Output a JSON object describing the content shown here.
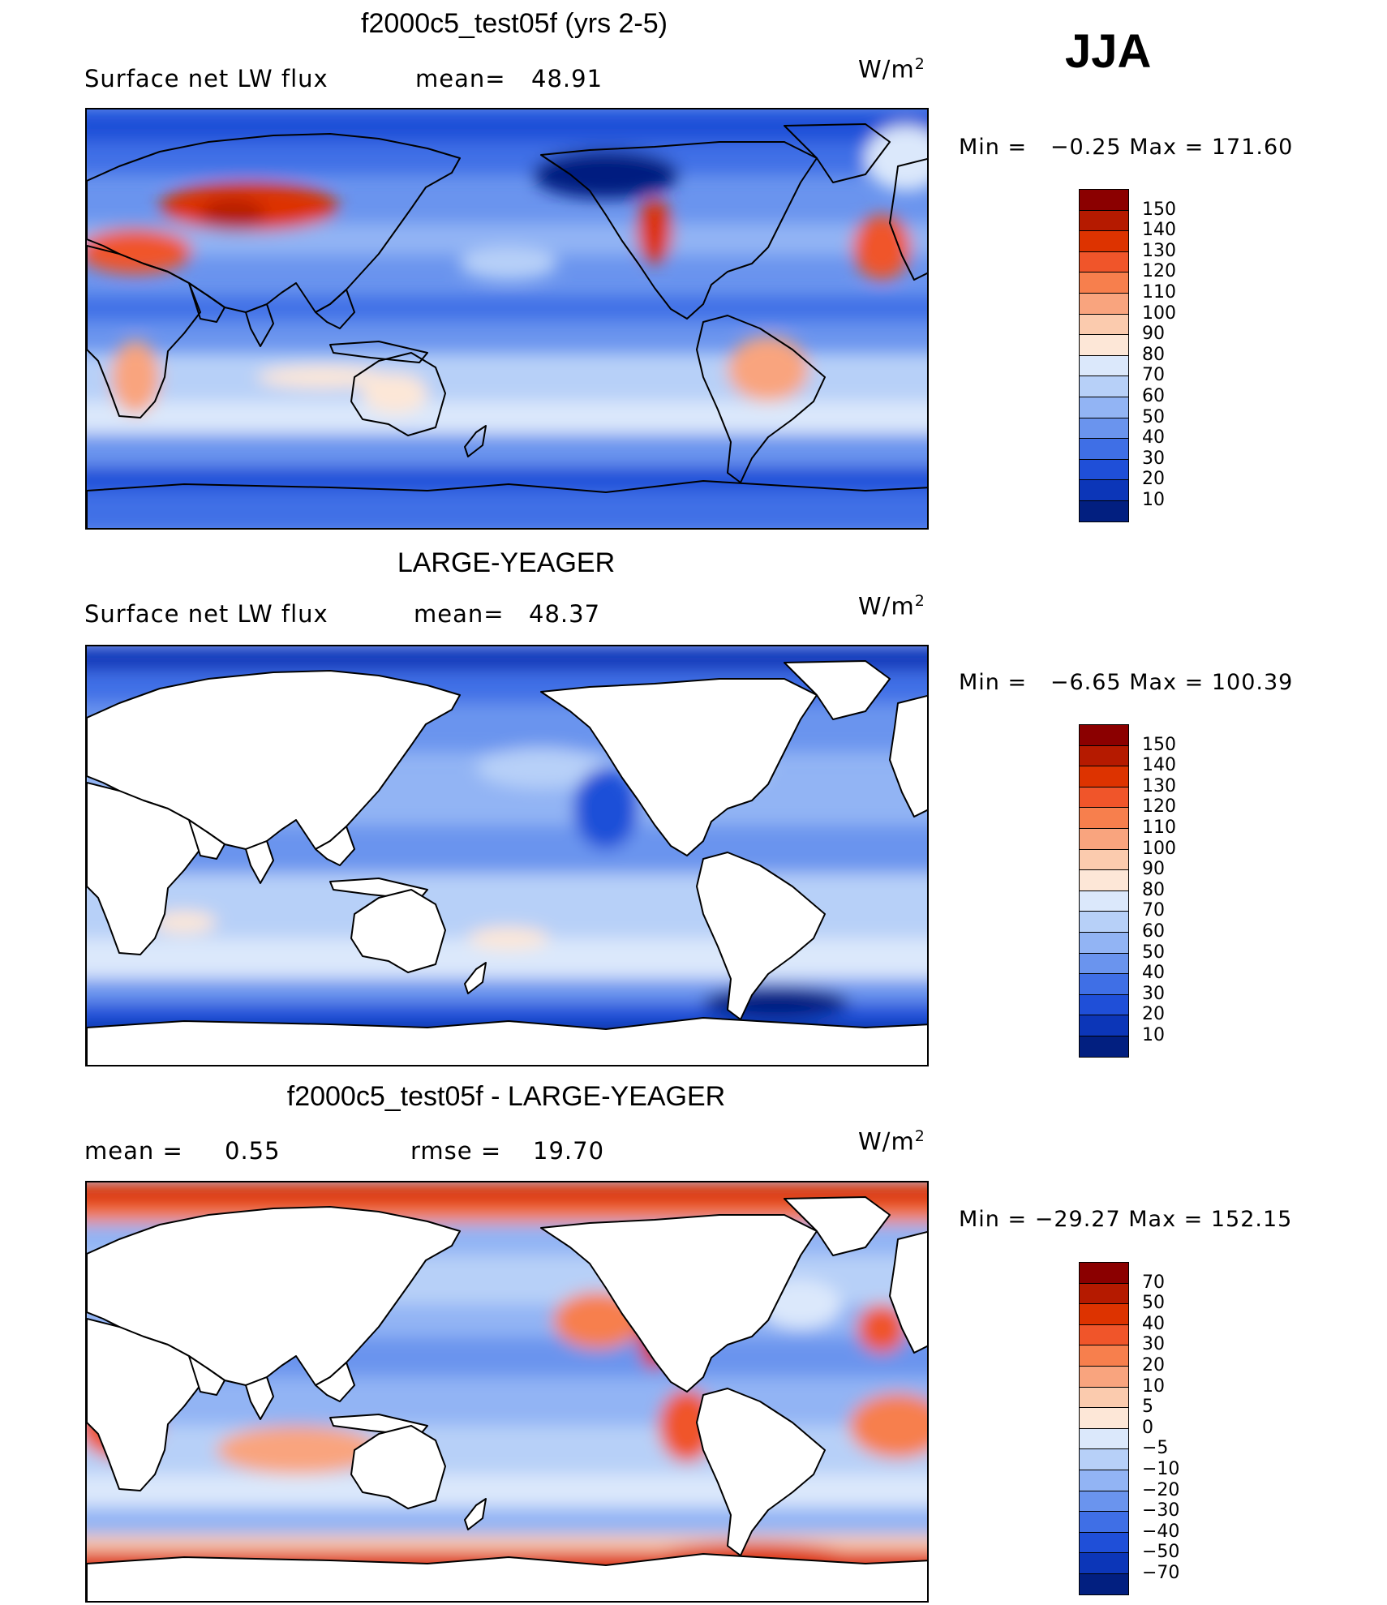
{
  "season": "JJA",
  "panels": [
    {
      "title": "f2000c5_test05f (yrs 2-5)",
      "sub_left": "Surface net LW flux",
      "sub_mid_label": "mean=",
      "sub_mid_value": "48.91",
      "units": "W/m",
      "units_sup": "2",
      "min_label": "Min  =",
      "min_value": "−0.25",
      "max_label": "Max  =",
      "max_value": "171.60",
      "land": "filled",
      "colorbar": {
        "labels": [
          "150",
          "140",
          "130",
          "120",
          "110",
          "100",
          "90",
          "80",
          "70",
          "60",
          "50",
          "40",
          "30",
          "20",
          "10"
        ],
        "colors": [
          "#8b0000",
          "#b51a00",
          "#dd3300",
          "#f0552a",
          "#f77f4d",
          "#f9a47e",
          "#fbcbae",
          "#fde7d7",
          "#dbe8fb",
          "#b7d0f8",
          "#92b4f4",
          "#6a94ee",
          "#3f6fe6",
          "#1f4fd8",
          "#0c36b8",
          "#021f80"
        ]
      }
    },
    {
      "title": "LARGE-YEAGER",
      "sub_left": "Surface net LW flux",
      "sub_mid_label": "mean=",
      "sub_mid_value": "48.37",
      "units": "W/m",
      "units_sup": "2",
      "min_label": "Min  =",
      "min_value": "−6.65",
      "max_label": "Max  =",
      "max_value": "100.39",
      "land": "white",
      "colorbar": {
        "labels": [
          "150",
          "140",
          "130",
          "120",
          "110",
          "100",
          "90",
          "80",
          "70",
          "60",
          "50",
          "40",
          "30",
          "20",
          "10"
        ],
        "colors": [
          "#8b0000",
          "#b51a00",
          "#dd3300",
          "#f0552a",
          "#f77f4d",
          "#f9a47e",
          "#fbcbae",
          "#fde7d7",
          "#dbe8fb",
          "#b7d0f8",
          "#92b4f4",
          "#6a94ee",
          "#3f6fe6",
          "#1f4fd8",
          "#0c36b8",
          "#021f80"
        ]
      }
    },
    {
      "title": "f2000c5_test05f - LARGE-YEAGER",
      "sub_left": "mean  =",
      "sub_left_value": "0.55",
      "sub_mid_label": "rmse  =",
      "sub_mid_value": "19.70",
      "units": "W/m",
      "units_sup": "2",
      "min_label": "Min  =",
      "min_value": "−29.27",
      "max_label": "Max  =",
      "max_value": "152.15",
      "land": "white",
      "colorbar": {
        "labels": [
          "70",
          "50",
          "40",
          "30",
          "20",
          "10",
          "5",
          "0",
          "−5",
          "−10",
          "−20",
          "−30",
          "−40",
          "−50",
          "−70"
        ],
        "colors": [
          "#8b0000",
          "#b51a00",
          "#dd3300",
          "#f0552a",
          "#f77f4d",
          "#f9a47e",
          "#fbcbae",
          "#fde7d7",
          "#dbe8fb",
          "#b7d0f8",
          "#92b4f4",
          "#6a94ee",
          "#3f6fe6",
          "#1f4fd8",
          "#0c36b8",
          "#021f80"
        ]
      }
    }
  ]
}
